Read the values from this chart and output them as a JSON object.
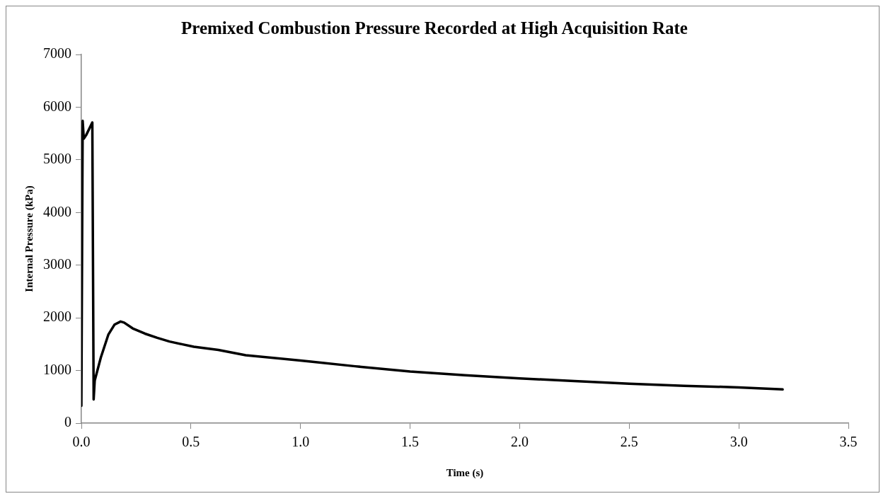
{
  "chart_data": {
    "type": "line",
    "title": "Premixed Combustion Pressure Recorded at High Acquisition Rate",
    "xlabel": "Time (s)",
    "ylabel": "Internal Pressure (kPa)",
    "x": [
      0,
      0.006,
      0.011,
      0.022,
      0.05,
      0.056,
      0.061,
      0.089,
      0.123,
      0.151,
      0.179,
      0.195,
      0.234,
      0.29,
      0.346,
      0.402,
      0.458,
      0.513,
      0.625,
      0.75,
      1.0,
      1.25,
      1.5,
      1.75,
      2.0,
      2.25,
      2.5,
      2.75,
      3.0,
      3.2
    ],
    "series": [
      {
        "color": "#000000",
        "values": [
          330,
          5740,
          5400,
          5470,
          5710,
          450,
          810,
          1250,
          1680,
          1870,
          1930,
          1910,
          1800,
          1700,
          1620,
          1550,
          1500,
          1450,
          1390,
          1290,
          1190,
          1080,
          980,
          910,
          850,
          800,
          750,
          710,
          680,
          640
        ]
      }
    ],
    "xlim": [
      0,
      3.5
    ],
    "xticks": [
      {
        "value": 0,
        "label": "0.0"
      },
      {
        "value": 0.5,
        "label": "0.5"
      },
      {
        "value": 1,
        "label": "1.0"
      },
      {
        "value": 1.5,
        "label": "1.5"
      },
      {
        "value": 2,
        "label": "2.0"
      },
      {
        "value": 2.5,
        "label": "2.5"
      },
      {
        "value": 3,
        "label": "3.0"
      },
      {
        "value": 3.5,
        "label": "3.5"
      }
    ],
    "ylim": [
      0,
      7000
    ],
    "yticks": [
      0,
      1000,
      2000,
      3000,
      4000,
      5000,
      6000,
      7000
    ],
    "grid": false,
    "legend": false,
    "marker": "none",
    "line_style": "solid"
  }
}
